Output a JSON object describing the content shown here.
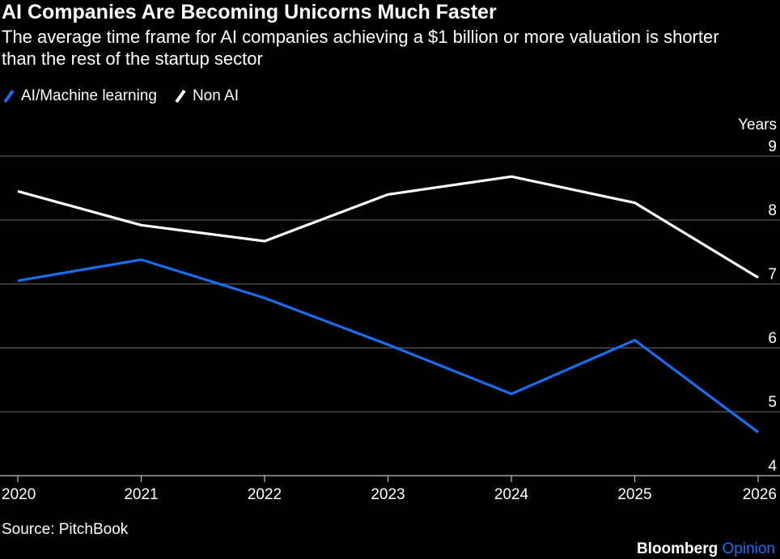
{
  "title": "AI Companies Are Becoming Unicorns Much Faster",
  "subtitle": "The average time frame for AI companies achieving a $1 billion or more valuation is shorter than the rest of the startup sector",
  "source": "Source: PitchBook",
  "brand": {
    "name": "Bloomberg",
    "section": "Opinion"
  },
  "legend": [
    {
      "name": "AI/Machine learning",
      "color": "#1a6df0"
    },
    {
      "name": "Non AI",
      "color": "#ffffff"
    }
  ],
  "chart_data": {
    "type": "line",
    "x": [
      "2020",
      "2021",
      "2022",
      "2023",
      "2024",
      "2025",
      "2026"
    ],
    "series": [
      {
        "name": "AI/Machine learning",
        "color": "#1a6df0",
        "values": [
          7.05,
          7.38,
          6.78,
          6.05,
          5.28,
          6.12,
          4.68
        ]
      },
      {
        "name": "Non AI",
        "color": "#ffffff",
        "values": [
          8.45,
          7.92,
          7.67,
          8.4,
          8.68,
          8.27,
          7.1
        ]
      }
    ],
    "ylabel": "Years",
    "yticks": [
      4,
      5,
      6,
      7,
      8,
      9
    ],
    "ylim": [
      4,
      9
    ],
    "grid": true,
    "y_axis_position": "right",
    "legend_position": "top-left"
  }
}
